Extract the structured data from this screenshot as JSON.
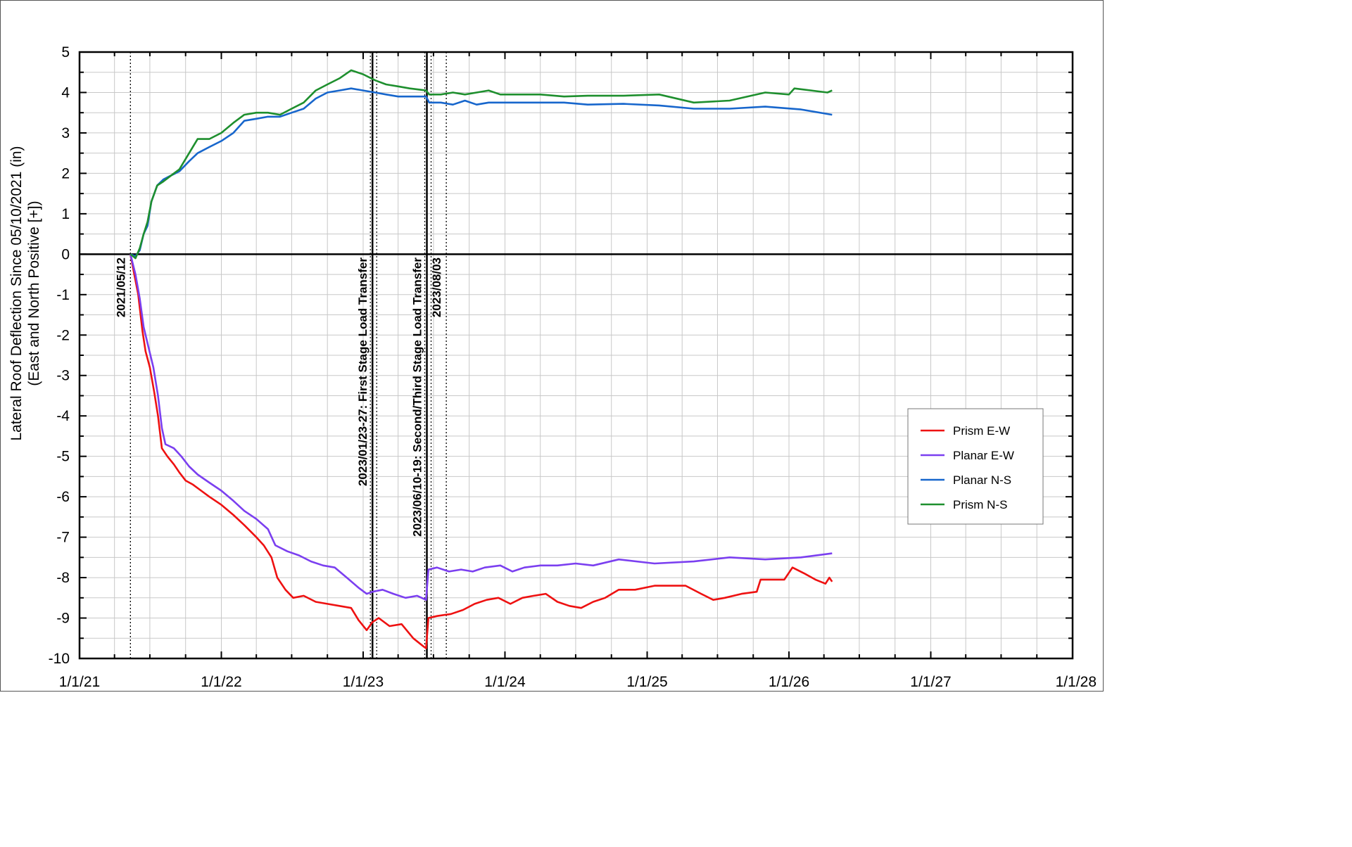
{
  "chart_data": {
    "type": "line",
    "title": "",
    "xlabel": "",
    "ylabel_lines": [
      "Lateral Roof Deflection Since 05/10/2021 (in)",
      "(East and North Positive [+])"
    ],
    "ylim": [
      -10,
      5
    ],
    "y_ticks": [
      5,
      4,
      3,
      2,
      1,
      0,
      -1,
      -2,
      -3,
      -4,
      -5,
      -6,
      -7,
      -8,
      -9,
      -10
    ],
    "xlim": [
      "2021-01-01",
      "2028-01-01"
    ],
    "x_ticks": [
      "1/1/21",
      "1/1/22",
      "1/1/23",
      "1/1/24",
      "1/1/25",
      "1/1/26",
      "1/1/27",
      "1/1/28"
    ],
    "grid": true,
    "legend": {
      "position": "right",
      "entries": [
        "Prism E-W",
        "Planar E-W",
        "Planar N-S",
        "Prism N-S"
      ]
    },
    "annotations": [
      {
        "date": "2021-05-12",
        "label": "2021/05/12",
        "style": "dotted"
      },
      {
        "date": "2023-01-25",
        "label": "2023/01/23-27: First Stage Load Transfer",
        "style": "solid-thick"
      },
      {
        "date": "2023-06-14",
        "label": "2023/06/10-19: Second/Third Stage Load Transfer",
        "style": "solid-thick"
      },
      {
        "date": "2023-08-03",
        "label": "2023/08/03",
        "style": "dotted"
      }
    ],
    "series": [
      {
        "name": "Prism E-W",
        "color": "#ee1111",
        "points": [
          [
            "2021-05-12",
            0.0
          ],
          [
            "2021-05-22",
            -0.5
          ],
          [
            "2021-06-01",
            -1.0
          ],
          [
            "2021-06-12",
            -1.9
          ],
          [
            "2021-06-20",
            -2.4
          ],
          [
            "2021-07-01",
            -2.8
          ],
          [
            "2021-07-12",
            -3.4
          ],
          [
            "2021-07-22",
            -4.0
          ],
          [
            "2021-08-01",
            -4.8
          ],
          [
            "2021-08-15",
            -5.0
          ],
          [
            "2021-09-01",
            -5.2
          ],
          [
            "2021-09-15",
            -5.4
          ],
          [
            "2021-10-01",
            -5.6
          ],
          [
            "2021-10-20",
            -5.7
          ],
          [
            "2021-11-10",
            -5.85
          ],
          [
            "2021-12-01",
            -6.0
          ],
          [
            "2022-01-01",
            -6.2
          ],
          [
            "2022-02-01",
            -6.45
          ],
          [
            "2022-03-01",
            -6.7
          ],
          [
            "2022-04-01",
            -7.0
          ],
          [
            "2022-04-20",
            -7.2
          ],
          [
            "2022-05-10",
            -7.5
          ],
          [
            "2022-05-25",
            -8.0
          ],
          [
            "2022-06-15",
            -8.3
          ],
          [
            "2022-07-05",
            -8.5
          ],
          [
            "2022-08-01",
            -8.45
          ],
          [
            "2022-09-01",
            -8.6
          ],
          [
            "2022-10-01",
            -8.65
          ],
          [
            "2022-11-01",
            -8.7
          ],
          [
            "2022-12-01",
            -8.75
          ],
          [
            "2022-12-20",
            -9.05
          ],
          [
            "2023-01-10",
            -9.3
          ],
          [
            "2023-01-25",
            -9.1
          ],
          [
            "2023-02-10",
            -9.0
          ],
          [
            "2023-03-10",
            -9.2
          ],
          [
            "2023-04-10",
            -9.15
          ],
          [
            "2023-05-10",
            -9.5
          ],
          [
            "2023-06-05",
            -9.7
          ],
          [
            "2023-06-12",
            -9.75
          ],
          [
            "2023-06-18",
            -9.0
          ],
          [
            "2023-07-10",
            -8.95
          ],
          [
            "2023-08-15",
            -8.9
          ],
          [
            "2023-09-15",
            -8.8
          ],
          [
            "2023-10-15",
            -8.65
          ],
          [
            "2023-11-15",
            -8.55
          ],
          [
            "2023-12-15",
            -8.5
          ],
          [
            "2024-01-15",
            -8.65
          ],
          [
            "2024-02-15",
            -8.5
          ],
          [
            "2024-03-15",
            -8.45
          ],
          [
            "2024-04-15",
            -8.4
          ],
          [
            "2024-05-15",
            -8.6
          ],
          [
            "2024-06-15",
            -8.7
          ],
          [
            "2024-07-15",
            -8.75
          ],
          [
            "2024-08-15",
            -8.6
          ],
          [
            "2024-09-15",
            -8.5
          ],
          [
            "2024-10-20",
            -8.3
          ],
          [
            "2024-12-01",
            -8.3
          ],
          [
            "2025-01-20",
            -8.2
          ],
          [
            "2025-03-01",
            -8.2
          ],
          [
            "2025-04-10",
            -8.2
          ],
          [
            "2025-05-20",
            -8.4
          ],
          [
            "2025-06-20",
            -8.55
          ],
          [
            "2025-07-20",
            -8.5
          ],
          [
            "2025-09-01",
            -8.4
          ],
          [
            "2025-10-10",
            -8.35
          ],
          [
            "2025-10-20",
            -8.05
          ],
          [
            "2025-11-20",
            -8.05
          ],
          [
            "2025-12-20",
            -8.05
          ],
          [
            "2026-01-10",
            -7.75
          ],
          [
            "2026-02-10",
            -7.9
          ],
          [
            "2026-03-10",
            -8.05
          ],
          [
            "2026-04-05",
            -8.15
          ],
          [
            "2026-04-15",
            -8.0
          ],
          [
            "2026-04-22",
            -8.1
          ]
        ]
      },
      {
        "name": "Planar E-W",
        "color": "#7b3ff0",
        "points": [
          [
            "2021-05-12",
            0.0
          ],
          [
            "2021-05-25",
            -0.5
          ],
          [
            "2021-06-05",
            -1.1
          ],
          [
            "2021-06-15",
            -1.8
          ],
          [
            "2021-06-25",
            -2.2
          ],
          [
            "2021-07-10",
            -2.8
          ],
          [
            "2021-07-22",
            -3.5
          ],
          [
            "2021-08-01",
            -4.3
          ],
          [
            "2021-08-10",
            -4.7
          ],
          [
            "2021-09-01",
            -4.8
          ],
          [
            "2021-09-20",
            -5.0
          ],
          [
            "2021-10-10",
            -5.25
          ],
          [
            "2021-11-01",
            -5.45
          ],
          [
            "2021-12-01",
            -5.65
          ],
          [
            "2022-01-01",
            -5.85
          ],
          [
            "2022-02-01",
            -6.1
          ],
          [
            "2022-03-01",
            -6.35
          ],
          [
            "2022-04-01",
            -6.55
          ],
          [
            "2022-05-01",
            -6.8
          ],
          [
            "2022-05-20",
            -7.2
          ],
          [
            "2022-06-20",
            -7.35
          ],
          [
            "2022-07-20",
            -7.45
          ],
          [
            "2022-08-20",
            -7.6
          ],
          [
            "2022-09-20",
            -7.7
          ],
          [
            "2022-10-20",
            -7.75
          ],
          [
            "2022-11-20",
            -8.0
          ],
          [
            "2022-12-20",
            -8.25
          ],
          [
            "2023-01-10",
            -8.4
          ],
          [
            "2023-01-25",
            -8.35
          ],
          [
            "2023-02-20",
            -8.3
          ],
          [
            "2023-03-20",
            -8.4
          ],
          [
            "2023-04-20",
            -8.5
          ],
          [
            "2023-05-20",
            -8.45
          ],
          [
            "2023-06-12",
            -8.55
          ],
          [
            "2023-06-18",
            -7.8
          ],
          [
            "2023-07-10",
            -7.75
          ],
          [
            "2023-08-10",
            -7.85
          ],
          [
            "2023-09-10",
            -7.8
          ],
          [
            "2023-10-10",
            -7.85
          ],
          [
            "2023-11-10",
            -7.75
          ],
          [
            "2023-12-20",
            -7.7
          ],
          [
            "2024-01-20",
            -7.85
          ],
          [
            "2024-02-20",
            -7.75
          ],
          [
            "2024-04-01",
            -7.7
          ],
          [
            "2024-05-15",
            -7.7
          ],
          [
            "2024-07-01",
            -7.65
          ],
          [
            "2024-08-15",
            -7.7
          ],
          [
            "2024-10-20",
            -7.55
          ],
          [
            "2025-01-20",
            -7.65
          ],
          [
            "2025-05-01",
            -7.6
          ],
          [
            "2025-08-01",
            -7.5
          ],
          [
            "2025-11-01",
            -7.55
          ],
          [
            "2026-02-01",
            -7.5
          ],
          [
            "2026-04-22",
            -7.4
          ]
        ]
      },
      {
        "name": "Planar N-S",
        "color": "#1766cc",
        "points": [
          [
            "2021-05-12",
            0.0
          ],
          [
            "2021-05-25",
            -0.05
          ],
          [
            "2021-06-05",
            0.1
          ],
          [
            "2021-06-15",
            0.5
          ],
          [
            "2021-06-25",
            0.7
          ],
          [
            "2021-07-05",
            1.3
          ],
          [
            "2021-07-20",
            1.7
          ],
          [
            "2021-08-05",
            1.85
          ],
          [
            "2021-08-25",
            1.95
          ],
          [
            "2021-09-15",
            2.05
          ],
          [
            "2021-10-10",
            2.3
          ],
          [
            "2021-11-01",
            2.5
          ],
          [
            "2021-12-01",
            2.65
          ],
          [
            "2022-01-01",
            2.8
          ],
          [
            "2022-02-01",
            3.0
          ],
          [
            "2022-03-01",
            3.3
          ],
          [
            "2022-04-01",
            3.35
          ],
          [
            "2022-05-01",
            3.4
          ],
          [
            "2022-06-01",
            3.4
          ],
          [
            "2022-07-01",
            3.5
          ],
          [
            "2022-08-01",
            3.6
          ],
          [
            "2022-09-01",
            3.85
          ],
          [
            "2022-10-01",
            4.0
          ],
          [
            "2022-11-01",
            4.05
          ],
          [
            "2022-12-01",
            4.1
          ],
          [
            "2023-01-01",
            4.05
          ],
          [
            "2023-02-01",
            4.0
          ],
          [
            "2023-03-01",
            3.95
          ],
          [
            "2023-04-01",
            3.9
          ],
          [
            "2023-05-01",
            3.9
          ],
          [
            "2023-06-12",
            3.9
          ],
          [
            "2023-06-20",
            3.75
          ],
          [
            "2023-07-20",
            3.75
          ],
          [
            "2023-08-20",
            3.7
          ],
          [
            "2023-09-20",
            3.8
          ],
          [
            "2023-10-20",
            3.7
          ],
          [
            "2023-11-20",
            3.75
          ],
          [
            "2023-12-20",
            3.75
          ],
          [
            "2024-02-01",
            3.75
          ],
          [
            "2024-04-01",
            3.75
          ],
          [
            "2024-06-01",
            3.75
          ],
          [
            "2024-08-01",
            3.7
          ],
          [
            "2024-11-01",
            3.72
          ],
          [
            "2025-02-01",
            3.68
          ],
          [
            "2025-05-01",
            3.6
          ],
          [
            "2025-08-01",
            3.6
          ],
          [
            "2025-11-01",
            3.65
          ],
          [
            "2026-02-01",
            3.58
          ],
          [
            "2026-04-22",
            3.45
          ]
        ]
      },
      {
        "name": "Prism N-S",
        "color": "#1e8f2e",
        "points": [
          [
            "2021-05-12",
            0.0
          ],
          [
            "2021-05-25",
            -0.1
          ],
          [
            "2021-06-05",
            0.15
          ],
          [
            "2021-06-15",
            0.5
          ],
          [
            "2021-06-25",
            0.8
          ],
          [
            "2021-07-05",
            1.3
          ],
          [
            "2021-07-20",
            1.7
          ],
          [
            "2021-08-05",
            1.8
          ],
          [
            "2021-08-25",
            1.95
          ],
          [
            "2021-09-15",
            2.1
          ],
          [
            "2021-10-10",
            2.5
          ],
          [
            "2021-11-01",
            2.85
          ],
          [
            "2021-12-01",
            2.85
          ],
          [
            "2022-01-01",
            3.0
          ],
          [
            "2022-02-01",
            3.25
          ],
          [
            "2022-03-01",
            3.45
          ],
          [
            "2022-04-01",
            3.5
          ],
          [
            "2022-05-01",
            3.5
          ],
          [
            "2022-06-01",
            3.45
          ],
          [
            "2022-07-01",
            3.6
          ],
          [
            "2022-08-01",
            3.75
          ],
          [
            "2022-09-01",
            4.05
          ],
          [
            "2022-10-01",
            4.2
          ],
          [
            "2022-11-01",
            4.35
          ],
          [
            "2022-12-01",
            4.55
          ],
          [
            "2023-01-01",
            4.45
          ],
          [
            "2023-02-01",
            4.3
          ],
          [
            "2023-03-01",
            4.2
          ],
          [
            "2023-04-01",
            4.15
          ],
          [
            "2023-05-01",
            4.1
          ],
          [
            "2023-06-12",
            4.05
          ],
          [
            "2023-06-20",
            3.95
          ],
          [
            "2023-07-20",
            3.95
          ],
          [
            "2023-08-20",
            4.0
          ],
          [
            "2023-09-20",
            3.95
          ],
          [
            "2023-10-20",
            4.0
          ],
          [
            "2023-11-20",
            4.05
          ],
          [
            "2023-12-20",
            3.95
          ],
          [
            "2024-02-01",
            3.95
          ],
          [
            "2024-04-01",
            3.95
          ],
          [
            "2024-06-01",
            3.9
          ],
          [
            "2024-08-01",
            3.92
          ],
          [
            "2024-11-01",
            3.92
          ],
          [
            "2025-02-01",
            3.95
          ],
          [
            "2025-05-01",
            3.75
          ],
          [
            "2025-08-01",
            3.8
          ],
          [
            "2025-11-01",
            4.0
          ],
          [
            "2026-01-01",
            3.95
          ],
          [
            "2026-01-15",
            4.1
          ],
          [
            "2026-04-10",
            4.0
          ],
          [
            "2026-04-22",
            4.05
          ]
        ]
      }
    ]
  }
}
